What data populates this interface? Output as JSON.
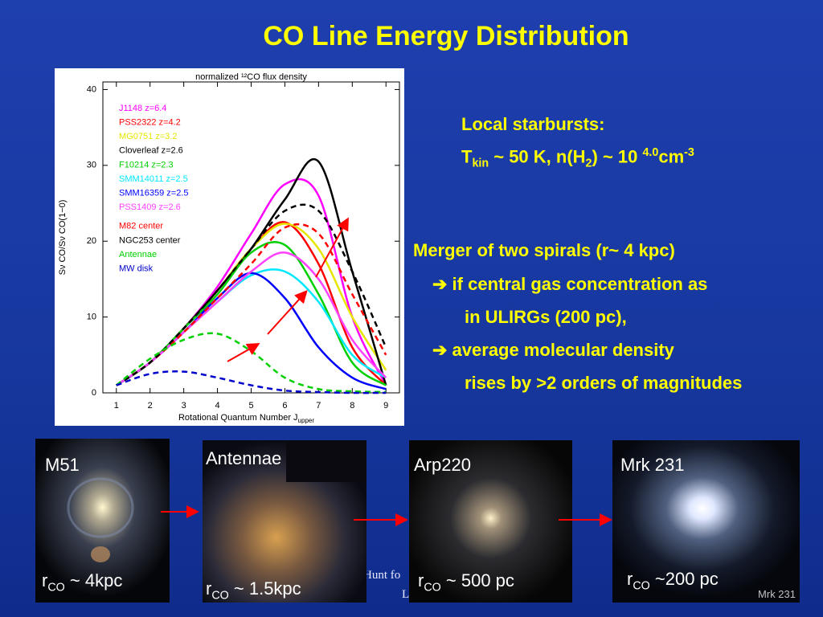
{
  "title": "CO Line Energy Distribution",
  "local": {
    "heading": "Local starbursts:",
    "line": [
      {
        "text": "T"
      },
      {
        "text": "kin",
        "sub": true
      },
      {
        "text": " ~ 50 K, n(H"
      },
      {
        "text": "2",
        "sub": true
      },
      {
        "text": ") ~ 10 "
      },
      {
        "text": "4.0",
        "sup": true
      },
      {
        "text": "cm"
      },
      {
        "text": "-3",
        "sup": true
      }
    ]
  },
  "merger": {
    "heading": "Merger of two spirals (r~ 4 kpc)",
    "lines": [
      "➔ if central gas concentration as",
      "in ULIRGs (200 pc),",
      "➔ average molecular density",
      "rises by >2 orders of magnitudes"
    ]
  },
  "panels": [
    {
      "name": "M51",
      "caption": [
        {
          "text": "r"
        },
        {
          "text": "CO",
          "sub": true
        },
        {
          "text": " ~ 4kpc"
        }
      ]
    },
    {
      "name": "Antennae",
      "caption": [
        {
          "text": "r"
        },
        {
          "text": "CO",
          "sub": true
        },
        {
          "text": " ~ 1.5kpc"
        }
      ]
    },
    {
      "name": "Arp220",
      "caption": [
        {
          "text": "r"
        },
        {
          "text": "CO",
          "sub": true
        },
        {
          "text": " ~ 500 pc"
        }
      ]
    },
    {
      "name": "Mrk 231",
      "caption": [
        {
          "text": "r"
        },
        {
          "text": "CO",
          "sub": true
        },
        {
          "text": " ~200 pc"
        }
      ]
    }
  ],
  "watermark": "Mrk 231",
  "footer": [
    "Hunt fo",
    "L"
  ],
  "chart_data": {
    "type": "line",
    "title": "normalized ¹²CO flux density",
    "y_label": "Sν CO/Sν CO(1−0)",
    "x_label": "Rotational Quantum Number J",
    "x_label_sub": "upper",
    "x": [
      1,
      2,
      3,
      4,
      5,
      6,
      7,
      8,
      9
    ],
    "xlim": [
      0.6,
      9.4
    ],
    "ylim": [
      0,
      41
    ],
    "xticks": [
      1,
      2,
      3,
      4,
      5,
      6,
      7,
      8,
      9
    ],
    "yticks": [
      0,
      10,
      20,
      30,
      40
    ],
    "series": [
      {
        "name": "J1148 z=6.4",
        "color": "#ff00ff",
        "dashed": false,
        "values": [
          1,
          4,
          8.5,
          14,
          21,
          27.5,
          26,
          10,
          1
        ]
      },
      {
        "name": "PSS2322 z=4.2",
        "color": "#ff0000",
        "dashed": false,
        "values": [
          1,
          4,
          8.5,
          13.5,
          19,
          22.5,
          17,
          6,
          1
        ]
      },
      {
        "name": "MG0751 z=3.2",
        "color": "#e6e600",
        "dashed": false,
        "values": [
          1,
          4,
          8.5,
          13.5,
          19,
          22.3,
          19,
          10,
          3
        ]
      },
      {
        "name": "Cloverleaf z=2.6",
        "color": "#000000",
        "dashed": false,
        "values": [
          1,
          4,
          8.5,
          13.5,
          19,
          25.5,
          30.5,
          16,
          1
        ]
      },
      {
        "name": "F10214 z=2.3",
        "color": "#00d000",
        "dashed": false,
        "values": [
          1,
          4,
          8.5,
          13,
          18.5,
          19.5,
          13,
          4,
          1
        ]
      },
      {
        "name": "SMM14011 z=2.5",
        "color": "#00e8ff",
        "dashed": false,
        "values": [
          1,
          4,
          8,
          12,
          15.5,
          16,
          12,
          5,
          2
        ]
      },
      {
        "name": "SMM16359 z=2.5",
        "color": "#0000ff",
        "dashed": false,
        "values": [
          1,
          4,
          8,
          12.5,
          15.8,
          12.5,
          6,
          2,
          0.5
        ]
      },
      {
        "name": "PSS1409 z=2.6",
        "color": "#ff40ff",
        "dashed": false,
        "values": [
          1,
          4,
          8,
          12,
          16,
          18.5,
          15,
          7,
          2
        ]
      },
      {
        "name": "M82 center",
        "color": "#ff0000",
        "dashed": true,
        "values": [
          1,
          4,
          8,
          12.5,
          17,
          21.8,
          21,
          13,
          5
        ]
      },
      {
        "name": "NGC253 center",
        "color": "#000000",
        "dashed": true,
        "values": [
          1,
          4,
          8.5,
          13.5,
          19,
          24,
          24,
          16,
          6
        ]
      },
      {
        "name": "Antennae",
        "color": "#00d000",
        "dashed": true,
        "values": [
          1,
          4.5,
          7,
          7.8,
          5.5,
          2,
          0.5,
          0.2,
          0.1
        ]
      },
      {
        "name": "MW disk",
        "color": "#0000cc",
        "dashed": true,
        "values": [
          1,
          2.5,
          2.8,
          2,
          1,
          0.3,
          0.1,
          0,
          0
        ]
      }
    ]
  }
}
